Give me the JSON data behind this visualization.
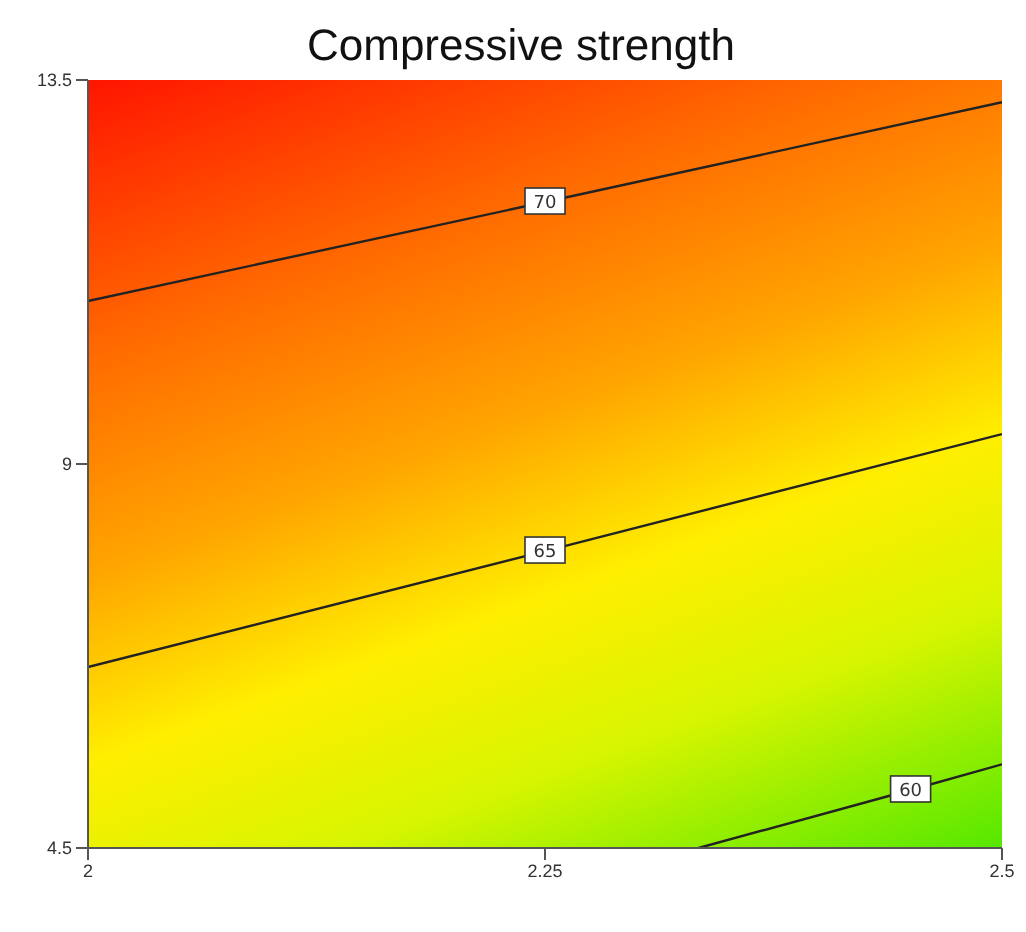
{
  "chart_data": {
    "type": "line",
    "title": "Compressive strength",
    "xlim": [
      2,
      2.5
    ],
    "xticks": [
      2,
      2.25,
      2.5
    ],
    "ylim": [
      4.5,
      13.5
    ],
    "yticks": [
      4.5,
      9,
      13.5
    ],
    "grid": false,
    "marker": "none",
    "line_style": "solid",
    "series": [
      {
        "name": "70",
        "color": "#222222",
        "x": [
          2,
          2.25,
          2.5
        ],
        "values": [
          10.91,
          12.07,
          13.24
        ]
      },
      {
        "name": "65",
        "color": "#222222",
        "x": [
          2,
          2.25,
          2.5
        ],
        "values": [
          6.62,
          7.98,
          9.35
        ]
      },
      {
        "name": "60",
        "color": "#222222",
        "x": [
          2.334,
          2.45,
          2.5
        ],
        "values": [
          4.5,
          5.18,
          5.48
        ]
      }
    ]
  }
}
